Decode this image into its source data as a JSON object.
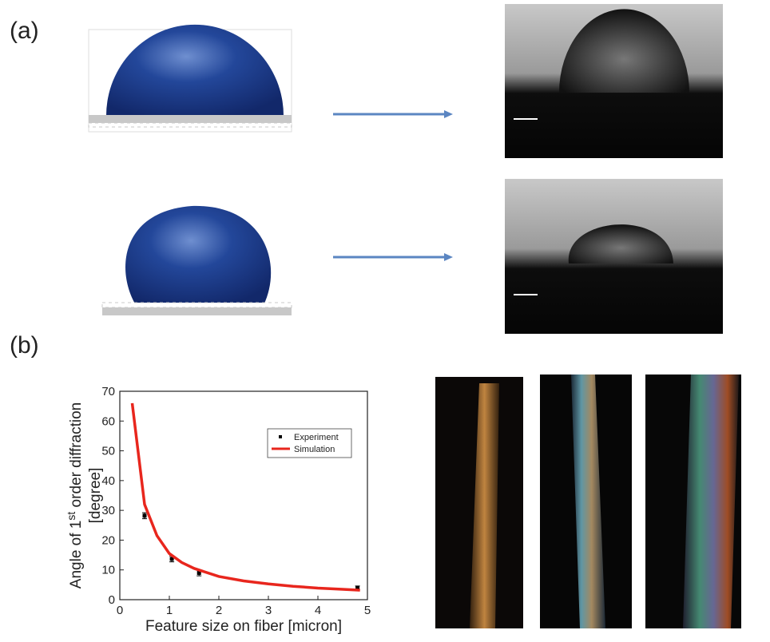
{
  "panels": {
    "a": "(a)",
    "b": "(b)"
  },
  "chart_data": {
    "type": "scatter",
    "x_label": "Feature size on fiber [micron]",
    "y_label": [
      "Angle of 1",
      "st",
      " order diffraction",
      "[degree]"
    ],
    "xlim": [
      0,
      5
    ],
    "xticks": [
      0,
      1,
      2,
      3,
      4,
      5
    ],
    "ylim": [
      0,
      70
    ],
    "yticks": [
      0,
      10,
      20,
      30,
      40,
      50,
      60,
      70
    ],
    "legend": "upper right",
    "series": [
      {
        "name": "Experiment",
        "color": "#000000",
        "mode": "markers",
        "x": [
          0.5,
          1.05,
          1.6,
          4.8
        ],
        "values": [
          28.2,
          13.7,
          9.0,
          4.0
        ],
        "errors": [
          1.0,
          1.0,
          1.0,
          0.6
        ]
      },
      {
        "name": "Simulation",
        "color": "#e8261d",
        "mode": "line",
        "x": [
          0.25,
          0.5,
          0.75,
          1.0,
          1.25,
          1.5,
          2.0,
          2.5,
          3.0,
          3.5,
          4.0,
          4.5,
          4.85
        ],
        "values": [
          66,
          32,
          21.5,
          15.5,
          12.5,
          10.5,
          7.8,
          6.3,
          5.3,
          4.5,
          3.9,
          3.5,
          3.2
        ]
      }
    ]
  }
}
